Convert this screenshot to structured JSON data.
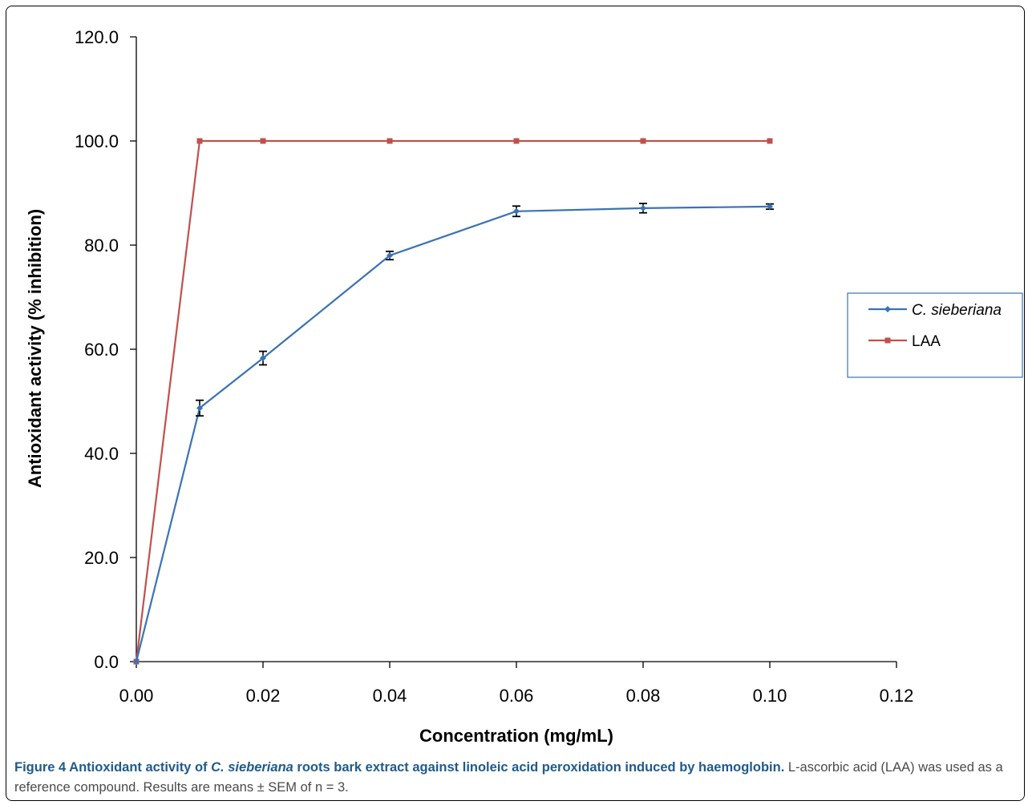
{
  "caption": {
    "label": "Figure 4",
    "title_parts": [
      "Antioxidant activity of ",
      "C. sieberiana",
      " roots bark extract against linoleic acid peroxidation induced by haemoglobin."
    ],
    "body": " L-ascorbic acid (LAA) was used as a reference compound. Results are means ± SEM of n = 3."
  },
  "chart_data": {
    "type": "line",
    "xlabel": "Concentration (mg/mL)",
    "ylabel": "Antioxidant activity (% inhibition)",
    "xlim": [
      0,
      0.12
    ],
    "ylim": [
      0,
      120
    ],
    "x_ticks": [
      "0.00",
      "0.02",
      "0.04",
      "0.06",
      "0.08",
      "0.10",
      "0.12"
    ],
    "x_tick_values": [
      0,
      0.02,
      0.04,
      0.06,
      0.08,
      0.1,
      0.12
    ],
    "y_ticks": [
      "0.0",
      "20.0",
      "40.0",
      "60.0",
      "80.0",
      "100.0",
      "120.0"
    ],
    "y_tick_values": [
      0,
      20,
      40,
      60,
      80,
      100,
      120
    ],
    "grid": false,
    "legend_position": "right",
    "series": [
      {
        "name": "C. sieberiana",
        "color": "#3a73b3",
        "marker": "diamond",
        "x": [
          0,
          0.01,
          0.02,
          0.04,
          0.06,
          0.08,
          0.1
        ],
        "y": [
          0,
          48.7,
          58.3,
          78.0,
          86.5,
          87.1,
          87.4
        ],
        "error": [
          0,
          1.5,
          1.3,
          0.8,
          1.0,
          0.9,
          0.5
        ]
      },
      {
        "name": "LAA",
        "color": "#c0504d",
        "marker": "square",
        "x": [
          0,
          0.01,
          0.02,
          0.04,
          0.06,
          0.08,
          0.1
        ],
        "y": [
          0,
          100.0,
          100.0,
          100.0,
          100.0,
          100.0,
          100.0
        ],
        "error": null
      }
    ]
  }
}
